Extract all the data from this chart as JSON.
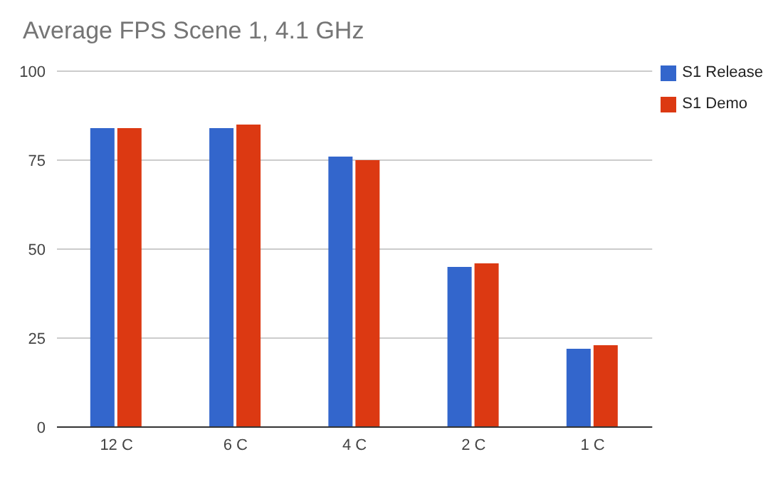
{
  "chart_data": {
    "type": "bar",
    "title": "Average FPS Scene 1, 4.1 GHz",
    "categories": [
      "12 C",
      "6 C",
      "4 C",
      "2 C",
      "1 C"
    ],
    "series": [
      {
        "name": "S1 Release",
        "color": "#3366cc",
        "values": [
          84,
          84,
          76,
          45,
          22
        ]
      },
      {
        "name": "S1 Demo",
        "color": "#dc3912",
        "values": [
          84,
          85,
          75,
          46,
          23
        ]
      }
    ],
    "ylim": [
      0,
      100
    ],
    "yticks": [
      0,
      25,
      50,
      75,
      100
    ],
    "grid": "y",
    "legend": "top right"
  }
}
